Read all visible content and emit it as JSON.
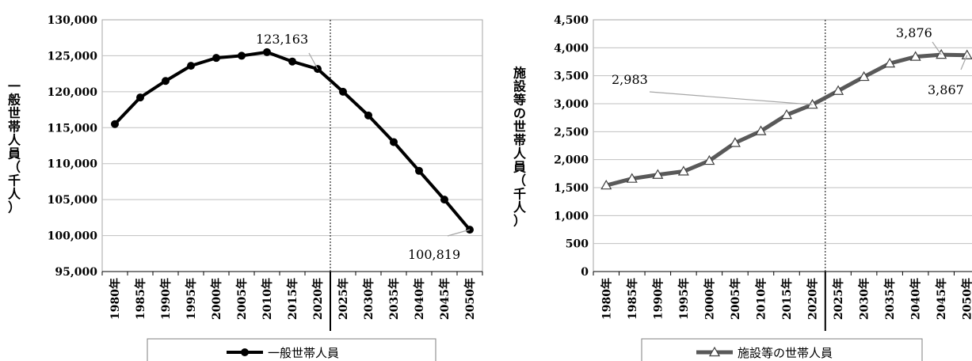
{
  "chart_data": [
    {
      "type": "line",
      "categories": [
        "1980年",
        "1985年",
        "1990年",
        "1995年",
        "2000年",
        "2005年",
        "2010年",
        "2015年",
        "2020年",
        "2025年",
        "2030年",
        "2035年",
        "2040年",
        "2045年",
        "2050年"
      ],
      "series": [
        {
          "name": "一般世帯人員",
          "values": [
            115500,
            119200,
            121500,
            123600,
            124700,
            125000,
            125500,
            124200,
            123163,
            120000,
            116700,
            113000,
            109000,
            105000,
            100819
          ]
        }
      ],
      "ylabel": "一般世帯人員（千人）",
      "ylim": [
        95000,
        130000
      ],
      "yticks": [
        "130,000",
        "125,000",
        "120,000",
        "115,000",
        "110,000",
        "105,000",
        "100,000",
        "95,000"
      ],
      "annotations": [
        {
          "text": "123,163",
          "category": "2020年"
        },
        {
          "text": "100,819",
          "category": "2050年"
        }
      ],
      "grid": true,
      "legend": "bottom",
      "marker": "circle",
      "color": "#000000"
    },
    {
      "type": "line",
      "categories": [
        "1980年",
        "1985年",
        "1990年",
        "1995年",
        "2000年",
        "2005年",
        "2010年",
        "2015年",
        "2020年",
        "2025年",
        "2030年",
        "2035年",
        "2040年",
        "2045年",
        "2050年"
      ],
      "series": [
        {
          "name": "施設等の世帯人員",
          "values": [
            1540,
            1660,
            1730,
            1790,
            1980,
            2300,
            2510,
            2800,
            2983,
            3230,
            3480,
            3720,
            3840,
            3876,
            3867
          ]
        }
      ],
      "ylabel": "施設等の世帯人員（千人）",
      "ylim": [
        0,
        4500
      ],
      "yticks": [
        "4,500",
        "4,000",
        "3,500",
        "3,000",
        "2,500",
        "2,000",
        "1,500",
        "1,000",
        "500",
        "0"
      ],
      "annotations": [
        {
          "text": "2,983",
          "category": "2020年"
        },
        {
          "text": "3,876",
          "category": "2045年"
        },
        {
          "text": "3,867",
          "category": "2050年"
        }
      ],
      "grid": true,
      "legend": "bottom",
      "marker": "triangle",
      "color": "#595959"
    }
  ]
}
